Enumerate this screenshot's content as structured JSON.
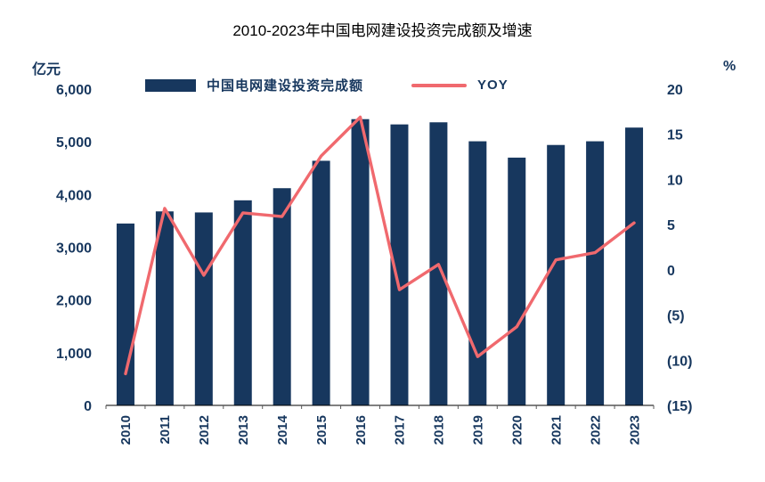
{
  "title": "2010-2023年中国电网建设投资完成额及增速",
  "left_axis_unit": "亿元",
  "right_axis_unit": "%",
  "colors": {
    "bar": "#17375E",
    "line": "#F0696E",
    "axis_text": "#17375E",
    "title_text": "#000000"
  },
  "chart_data": {
    "type": "bar",
    "subtype": "bar+line combo, dual axis",
    "title": "2010-2023年中国电网建设投资完成额及增速",
    "categories": [
      "2010",
      "2011",
      "2012",
      "2013",
      "2014",
      "2015",
      "2016",
      "2017",
      "2018",
      "2019",
      "2020",
      "2021",
      "2022",
      "2023"
    ],
    "series": [
      {
        "name": "中国电网建设投资完成额",
        "type": "bar",
        "axis": "left",
        "unit": "亿元",
        "values": [
          3450,
          3680,
          3660,
          3890,
          4120,
          4640,
          5430,
          5330,
          5370,
          5010,
          4700,
          4940,
          5010,
          5270
        ]
      },
      {
        "name": "YOY",
        "type": "line",
        "axis": "right",
        "unit": "%",
        "values": [
          -11.5,
          6.8,
          -0.6,
          6.3,
          5.9,
          12.6,
          16.9,
          -2.2,
          0.6,
          -9.6,
          -6.3,
          1.1,
          1.9,
          5.2
        ]
      }
    ],
    "left_axis": {
      "unit": "亿元",
      "min": 0,
      "max": 6000,
      "tick_values": [
        6000,
        5000,
        4000,
        3000,
        2000,
        1000,
        0
      ],
      "tick_labels": [
        "6,000",
        "5,000",
        "4,000",
        "3,000",
        "2,000",
        "1,000",
        "0"
      ]
    },
    "right_axis": {
      "unit": "%",
      "min": -15,
      "max": 20,
      "tick_values": [
        20,
        15,
        10,
        5,
        0,
        -5,
        -10,
        -15
      ],
      "tick_labels": [
        "20",
        "15",
        "10",
        "5",
        "0",
        "(5)",
        "(10)",
        "(15)"
      ]
    },
    "grid": false,
    "legend_position": "top",
    "x_label_rotation": -90
  }
}
